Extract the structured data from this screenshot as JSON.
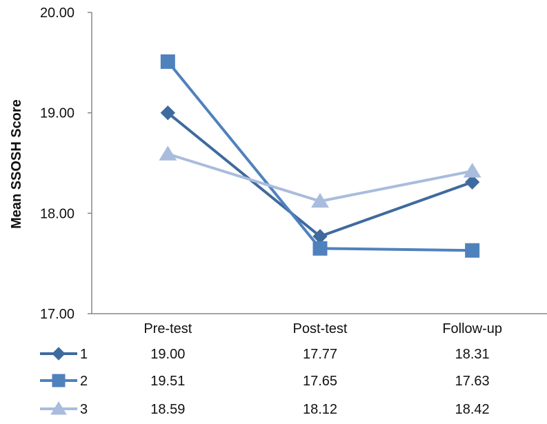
{
  "chart_data": {
    "type": "line",
    "title": "",
    "xlabel": "",
    "ylabel": "Mean SSOSH Score",
    "categories": [
      "Pre-test",
      "Post-test",
      "Follow-up"
    ],
    "ylim": [
      17.0,
      20.0
    ],
    "yticks": [
      "17.00",
      "18.00",
      "19.00",
      "20.00"
    ],
    "grid": false,
    "legend": "data table below chart",
    "series": [
      {
        "name": "1",
        "marker": "diamond",
        "color": "#3F6A9E",
        "values": [
          19.0,
          17.77,
          18.31
        ],
        "labels": [
          "19.00",
          "17.77",
          "18.31"
        ]
      },
      {
        "name": "2",
        "marker": "square",
        "color": "#4F81BD",
        "values": [
          19.51,
          17.65,
          17.63
        ],
        "labels": [
          "19.51",
          "17.65",
          "17.63"
        ]
      },
      {
        "name": "3",
        "marker": "triangle",
        "color": "#A9BCDD",
        "values": [
          18.59,
          18.12,
          18.42
        ],
        "labels": [
          "18.59",
          "18.12",
          "18.42"
        ]
      }
    ]
  }
}
